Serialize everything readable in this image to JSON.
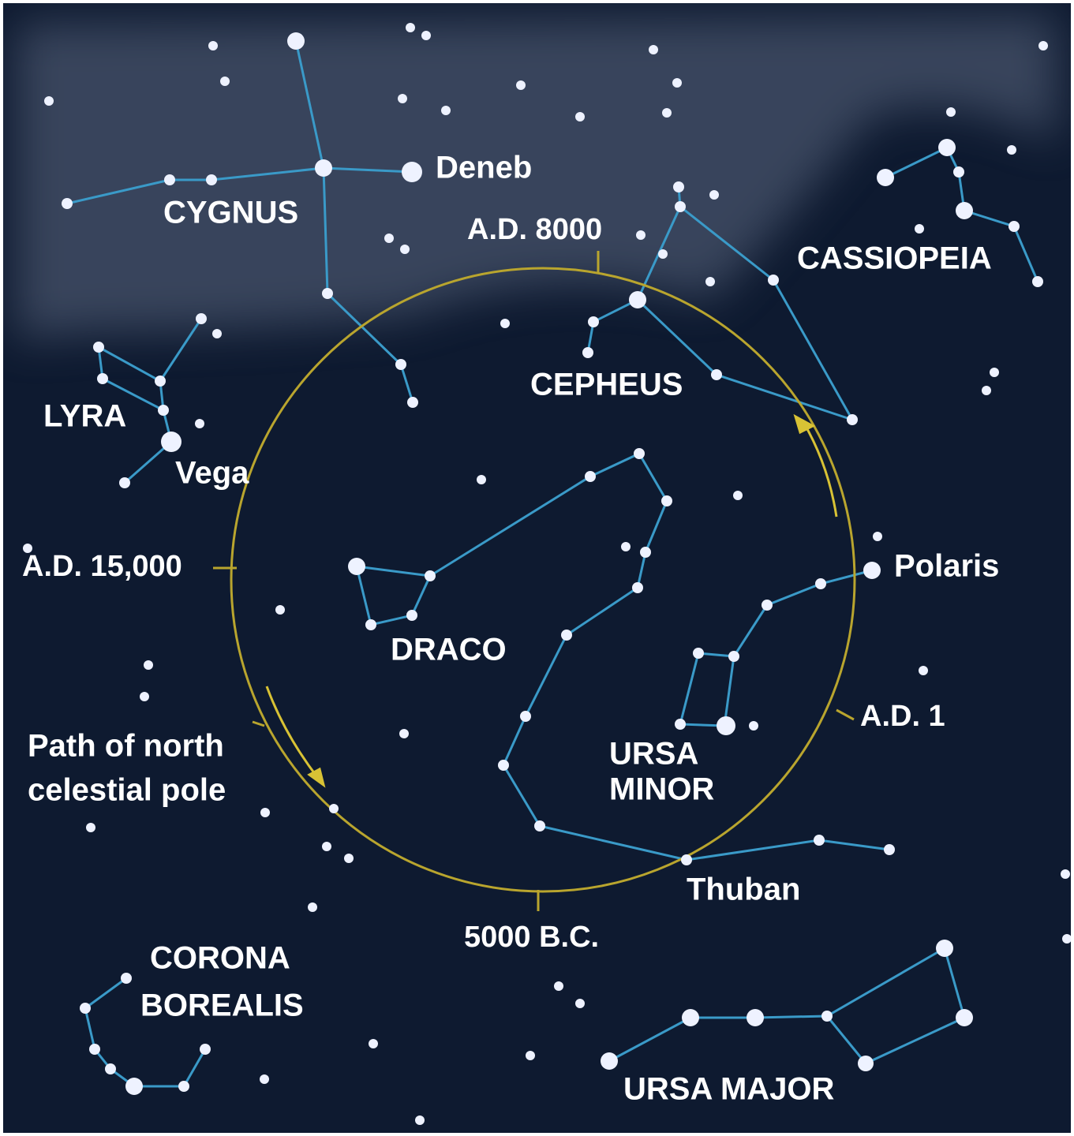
{
  "constellations": {
    "cygnus": "CYGNUS",
    "cassiopeia": "CASSIOPEIA",
    "cepheus": "CEPHEUS",
    "lyra": "LYRA",
    "draco": "DRACO",
    "ursa_minor": [
      "URSA",
      "MINOR"
    ],
    "corona_borealis": [
      "CORONA",
      "BOREALIS"
    ],
    "ursa_major": "URSA MAJOR"
  },
  "stars": {
    "deneb": "Deneb",
    "vega": "Vega",
    "polaris": "Polaris",
    "thuban": "Thuban"
  },
  "epochs": {
    "ad_8000": "A.D. 8000",
    "ad_15000": "A.D. 15,000",
    "ad_1": "A.D. 1",
    "bc_5000": "5000 B.C."
  },
  "path_label": [
    "Path of north",
    "celestial pole"
  ]
}
